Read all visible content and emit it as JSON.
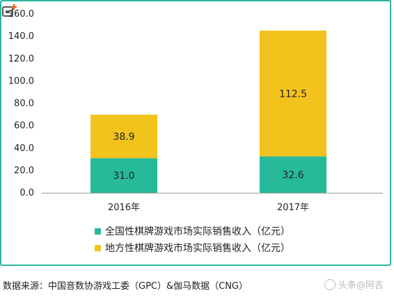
{
  "chart_data": {
    "type": "bar",
    "stacked": true,
    "categories": [
      "2016年",
      "2017年"
    ],
    "series": [
      {
        "name": "全国性棋牌游戏市场实际销售收入（亿元）",
        "values": [
          31.0,
          32.6
        ],
        "color": "#26b99a"
      },
      {
        "name": "地方性棋牌游戏市场实际销售收入（亿元）",
        "values": [
          38.9,
          112.5
        ],
        "color": "#f2c31c"
      }
    ],
    "yticks": [
      "0.0",
      "20.0",
      "40.0",
      "60.0",
      "80.0",
      "100.0",
      "120.0",
      "140.0",
      "160.0"
    ],
    "ylim": [
      0,
      160
    ],
    "grid": false,
    "legend_position": "bottom",
    "title": "",
    "xlabel": "",
    "ylabel": ""
  },
  "source_text": "数据来源：中国音数协游戏工委（GPC）&伽马数据（CNG）",
  "watermark_text": "头条@阿吉",
  "logo_icon": "add-square-icon",
  "logo_color": "#e7652a"
}
